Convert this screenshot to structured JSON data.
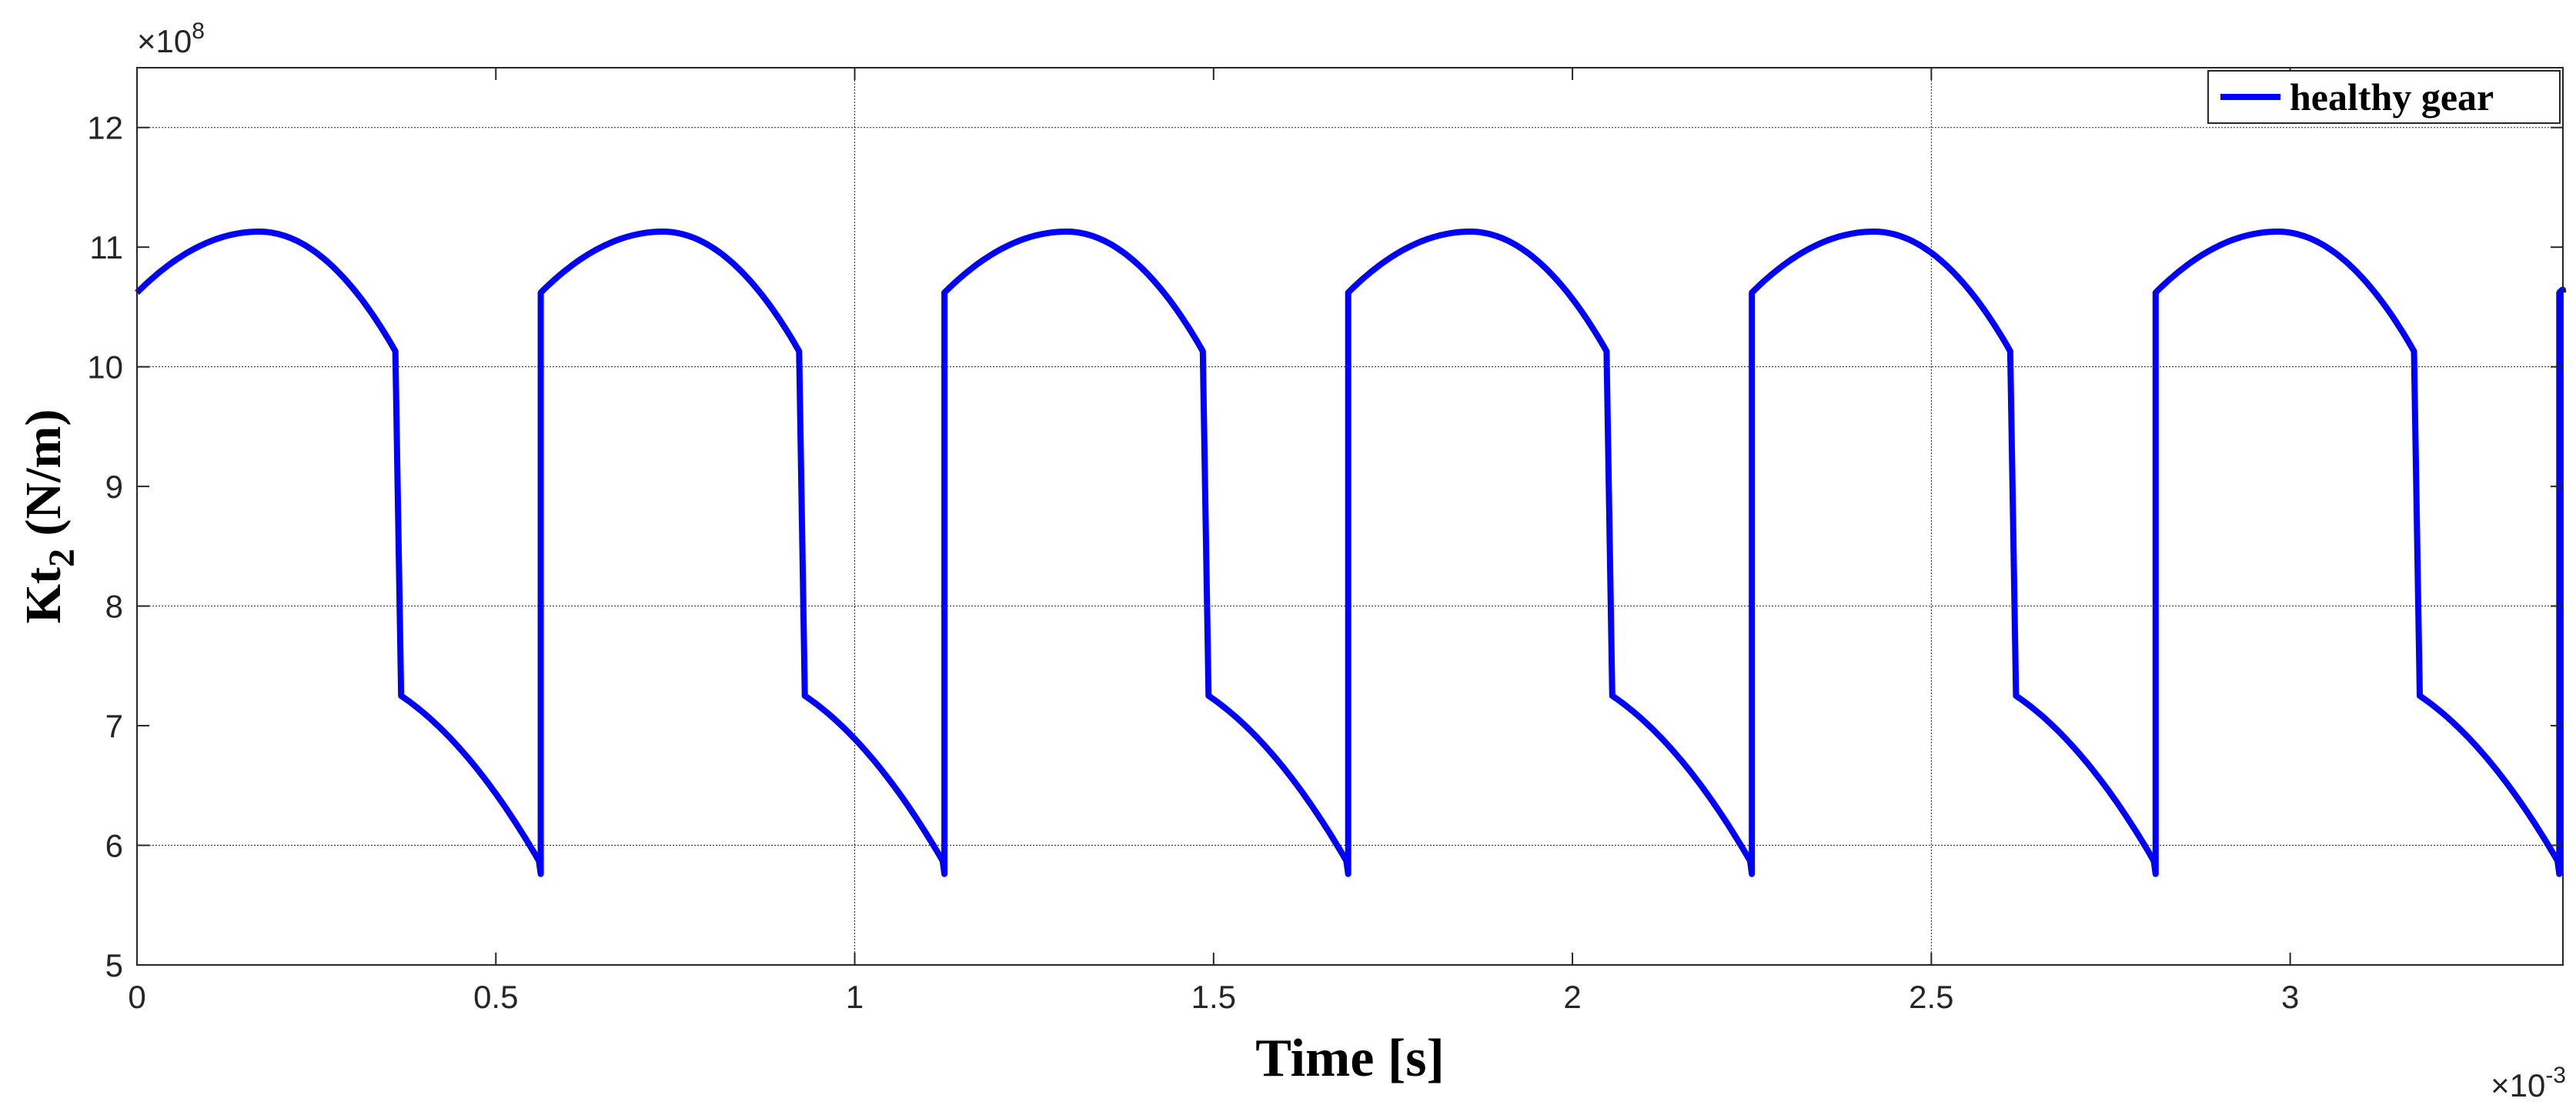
{
  "chart_data": {
    "type": "line",
    "title": "",
    "xlabel": "Time [s]",
    "ylabel_main": "Kt",
    "ylabel_sub": "2",
    "ylabel_unit": " (N/m)",
    "x_exponent_label": "×10",
    "x_exponent_power": "-3",
    "y_exponent_label": "×10",
    "y_exponent_power": "8",
    "x_scale": 0.001,
    "y_scale": 100000000,
    "xlim": [
      0,
      3.38
    ],
    "ylim": [
      5,
      12.5
    ],
    "x_ticks": [
      0,
      0.5,
      1,
      1.5,
      2,
      2.5,
      3
    ],
    "x_tick_labels": [
      "0",
      "0.5",
      "1",
      "1.5",
      "2",
      "2.5",
      "3"
    ],
    "y_ticks": [
      5,
      6,
      7,
      8,
      9,
      10,
      11,
      12
    ],
    "y_tick_labels": [
      "5",
      "6",
      "7",
      "8",
      "9",
      "10",
      "11",
      "12"
    ],
    "grid_y": [
      6,
      8,
      10,
      12
    ],
    "grid_x": [
      1,
      2.5
    ],
    "legend_placement": "top-right",
    "series": [
      {
        "name": "healthy gear",
        "color": "#0000ff",
        "period": 0.5625,
        "double_contact_end": 0.36,
        "cycles": 6,
        "x_end": 3.38,
        "y_start_single": 7.25,
        "y_end_single": 5.76,
        "y_start_double": 10.62,
        "y_peak_double": 11.13,
        "x_peak_double": 0.17,
        "y_end_double": 10.13
      }
    ]
  }
}
